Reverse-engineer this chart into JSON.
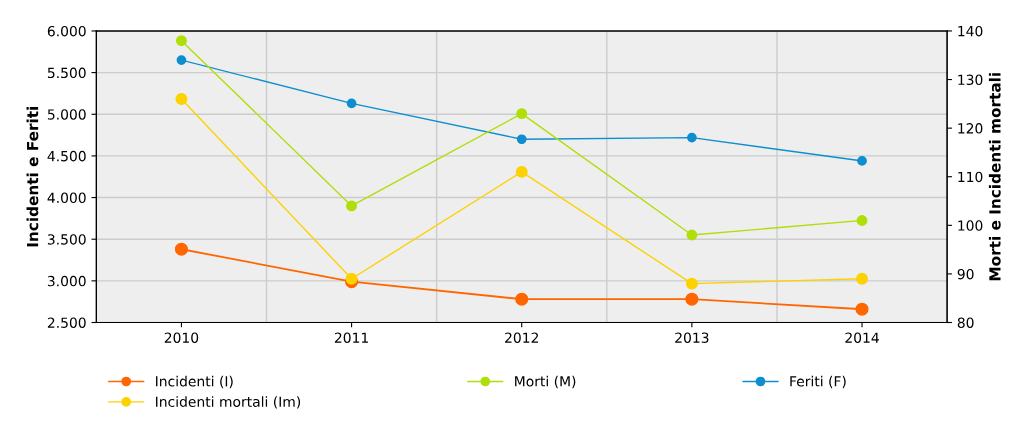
{
  "chart_data": {
    "type": "line",
    "ylabel": "Incidenti e Feriti",
    "y2label": "Morti e Incidenti mortali",
    "categories": [
      "2010",
      "2011",
      "2012",
      "2013",
      "2014"
    ],
    "series": [
      {
        "name": "Incidenti (I)",
        "color": "#ff6600",
        "values": [
          3380,
          2990,
          2780,
          2780,
          2660
        ]
      },
      {
        "name": "Incidenti mortali (Im)",
        "color": "#fcd202",
        "axis": "y2",
        "values": [
          126,
          89,
          111,
          88,
          89
        ]
      },
      {
        "name": "Morti (M)",
        "color": "#b0de09",
        "axis": "y2",
        "values": [
          138,
          104,
          123,
          98,
          101
        ]
      },
      {
        "name": "Feriti (F)",
        "color": "#0d8ecf",
        "values": [
          5650,
          5130,
          4700,
          4720,
          4440
        ]
      }
    ],
    "ylim": [
      2500,
      6000
    ],
    "yticks": [
      {
        "value": 2500,
        "label": "2.500"
      },
      {
        "value": 3000,
        "label": "3.000"
      },
      {
        "value": 3500,
        "label": "3.500"
      },
      {
        "value": 4000,
        "label": "4.000"
      },
      {
        "value": 4500,
        "label": "4.500"
      },
      {
        "value": 5000,
        "label": "5.000"
      },
      {
        "value": 5500,
        "label": "5.500"
      },
      {
        "value": 6000,
        "label": "6.000"
      }
    ],
    "y2lim": [
      80,
      140
    ],
    "y2ticks": [
      80,
      90,
      100,
      110,
      120,
      130,
      140
    ],
    "grid": true,
    "legend": "bottom",
    "marker": "circle",
    "line_style": "solid"
  }
}
